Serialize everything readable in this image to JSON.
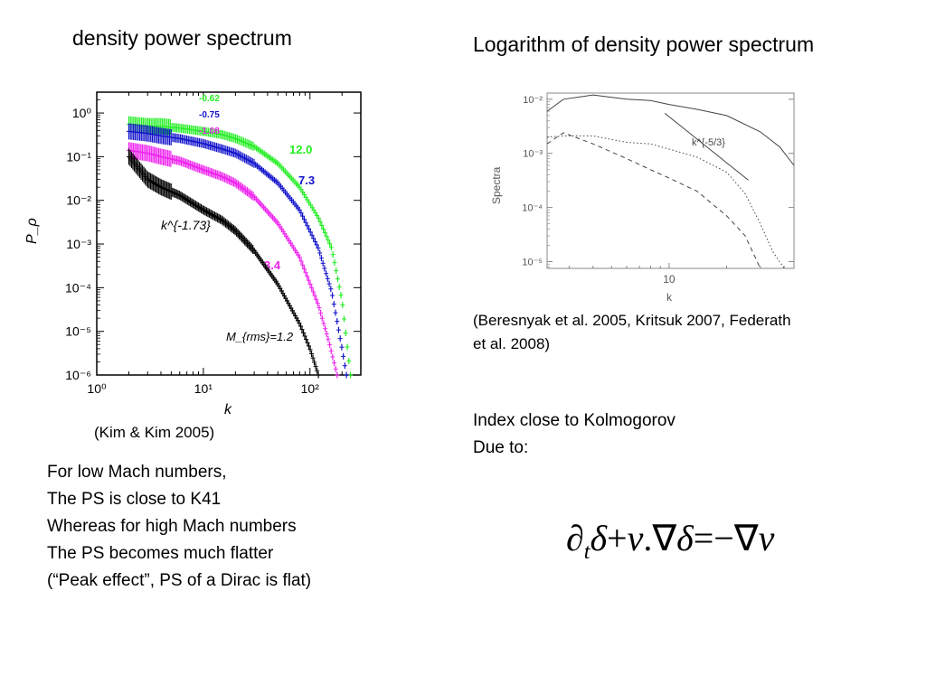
{
  "left_title": "density power spectrum",
  "right_title": "Logarithm of density power  spectrum",
  "left_caption": "(Kim & Kim 2005)",
  "right_caption_lines": [
    "(Beresnyak et al. 2005, Kritsuk 2007, Federath",
    "et al. 2008)"
  ],
  "notes_right": [
    "Index close to Kolmogorov",
    "Due to:"
  ],
  "notes_left": [
    "For low Mach numbers,",
    "The PS is close to K41",
    "Whereas for high Mach numbers",
    "The PS becomes much flatter",
    "(“Peak effect”, PS of a Dirac is flat)"
  ],
  "equation": {
    "d": "∂",
    "t": "t",
    "delta": "δ",
    "plus": "+",
    "v": "v",
    "dot": ".",
    "nabla": "∇",
    "eq": "=",
    "minus": "−"
  },
  "colors": {
    "green": "#22ee22",
    "blue": "#1111cc",
    "magenta": "#ee22ee",
    "black": "#000000"
  },
  "chart_data": [
    {
      "type": "scatter",
      "xlabel": "k",
      "ylabel": "P_ρ",
      "x_ticks": [
        "10⁰",
        "10¹",
        "10²"
      ],
      "y_ticks": [
        "10⁰",
        "10⁻¹",
        "10⁻²",
        "10⁻³",
        "10⁻⁴",
        "10⁻⁵",
        "10⁻⁶"
      ],
      "xlim": [
        1,
        300
      ],
      "ylim": [
        1e-06,
        3
      ],
      "x_scale": "log",
      "y_scale": "log",
      "annotations": [
        "k^{-1.73}",
        "M_{rms}=1.2"
      ],
      "series": [
        {
          "name": "-0.62",
          "end_label": "12.0",
          "color": "#22ee22",
          "x": [
            2,
            3,
            4,
            6,
            10,
            15,
            20,
            30,
            50,
            80,
            120,
            160,
            200,
            240
          ],
          "y": [
            0.55,
            0.5,
            0.5,
            0.45,
            0.38,
            0.32,
            0.26,
            0.17,
            0.07,
            0.02,
            0.004,
            0.0008,
            5e-05,
            1e-06
          ]
        },
        {
          "name": "-0.75",
          "end_label": "7.3",
          "color": "#1111cc",
          "x": [
            2,
            3,
            4,
            6,
            10,
            15,
            20,
            30,
            50,
            80,
            120,
            160,
            200,
            220
          ],
          "y": [
            0.38,
            0.34,
            0.3,
            0.26,
            0.2,
            0.15,
            0.12,
            0.07,
            0.025,
            0.006,
            0.0008,
            8e-05,
            4e-06,
            1e-06
          ]
        },
        {
          "name": "-1.08",
          "end_label": "3.4",
          "color": "#ee22ee",
          "x": [
            2,
            3,
            4,
            6,
            10,
            15,
            20,
            30,
            50,
            80,
            120,
            150,
            180
          ],
          "y": [
            0.14,
            0.12,
            0.1,
            0.08,
            0.05,
            0.035,
            0.025,
            0.012,
            0.003,
            0.0005,
            4e-05,
            6e-06,
            1e-06
          ]
        },
        {
          "name": "",
          "end_label": "",
          "color": "#000000",
          "x": [
            2,
            3,
            4,
            6,
            10,
            15,
            20,
            30,
            50,
            80,
            100,
            120
          ],
          "y": [
            0.1,
            0.03,
            0.02,
            0.013,
            0.006,
            0.0035,
            0.002,
            0.0007,
            0.00012,
            1.5e-05,
            4e-06,
            1e-06
          ]
        }
      ]
    },
    {
      "type": "line",
      "xlabel": "k",
      "ylabel": "Spectra",
      "x_ticks": [
        "10"
      ],
      "y_ticks": [
        "10⁻²",
        "10⁻³",
        "10⁻⁴",
        "10⁻⁵"
      ],
      "xlim": [
        2.3,
        45
      ],
      "ylim": [
        7.5e-06,
        0.013
      ],
      "x_scale": "log",
      "y_scale": "log",
      "annotations": [
        "k^{-5/3}"
      ],
      "series": [
        {
          "name": "",
          "style": "solid",
          "x": [
            2.3,
            2.8,
            4,
            6,
            8,
            10,
            14,
            20,
            30,
            38,
            45
          ],
          "y": [
            0.006,
            0.01,
            0.012,
            0.01,
            0.0095,
            0.008,
            0.0065,
            0.005,
            0.0025,
            0.0013,
            0.0006
          ]
        },
        {
          "name": "",
          "style": "dotted",
          "x": [
            2.3,
            2.8,
            4,
            6,
            8,
            10,
            14,
            20,
            25,
            30,
            35,
            40
          ],
          "y": [
            0.002,
            0.0021,
            0.0021,
            0.0016,
            0.0015,
            0.0012,
            0.00085,
            0.00045,
            0.00018,
            5e-05,
            1.5e-05,
            7.5e-06
          ]
        },
        {
          "name": "",
          "style": "dashed",
          "x": [
            2.3,
            2.8,
            4,
            6,
            8,
            10,
            14,
            20,
            25,
            30
          ],
          "y": [
            0.0015,
            0.0024,
            0.0015,
            0.0008,
            0.0005,
            0.00035,
            0.0002,
            7e-05,
            3e-05,
            7.5e-06
          ]
        },
        {
          "name": "",
          "style": "solid-reference",
          "x": [
            9.5,
            26
          ],
          "y": [
            0.0055,
            0.00032
          ]
        }
      ]
    }
  ]
}
